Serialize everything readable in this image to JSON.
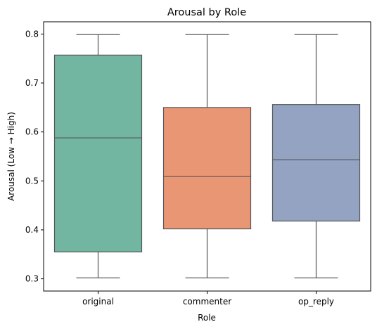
{
  "chart_data": {
    "type": "box",
    "title": "Arousal by Role",
    "xlabel": "Role",
    "ylabel": "Arousal (Low → High)",
    "ylim": [
      0.275,
      0.825
    ],
    "yticks": [
      0.3,
      0.4,
      0.5,
      0.6,
      0.7,
      0.8
    ],
    "ytick_labels": [
      "0.3",
      "0.4",
      "0.5",
      "0.6",
      "0.7",
      "0.8"
    ],
    "grid": false,
    "categories": [
      "original",
      "commenter",
      "op_reply"
    ],
    "boxes": [
      {
        "category": "original",
        "min": 0.302,
        "q1": 0.355,
        "median": 0.588,
        "q3": 0.757,
        "max": 0.799,
        "color": "#72b6a1"
      },
      {
        "category": "commenter",
        "min": 0.302,
        "q1": 0.402,
        "median": 0.509,
        "q3": 0.65,
        "max": 0.799,
        "color": "#e99675"
      },
      {
        "category": "op_reply",
        "min": 0.302,
        "q1": 0.418,
        "median": 0.543,
        "q3": 0.656,
        "max": 0.799,
        "color": "#95a3c3"
      }
    ]
  }
}
